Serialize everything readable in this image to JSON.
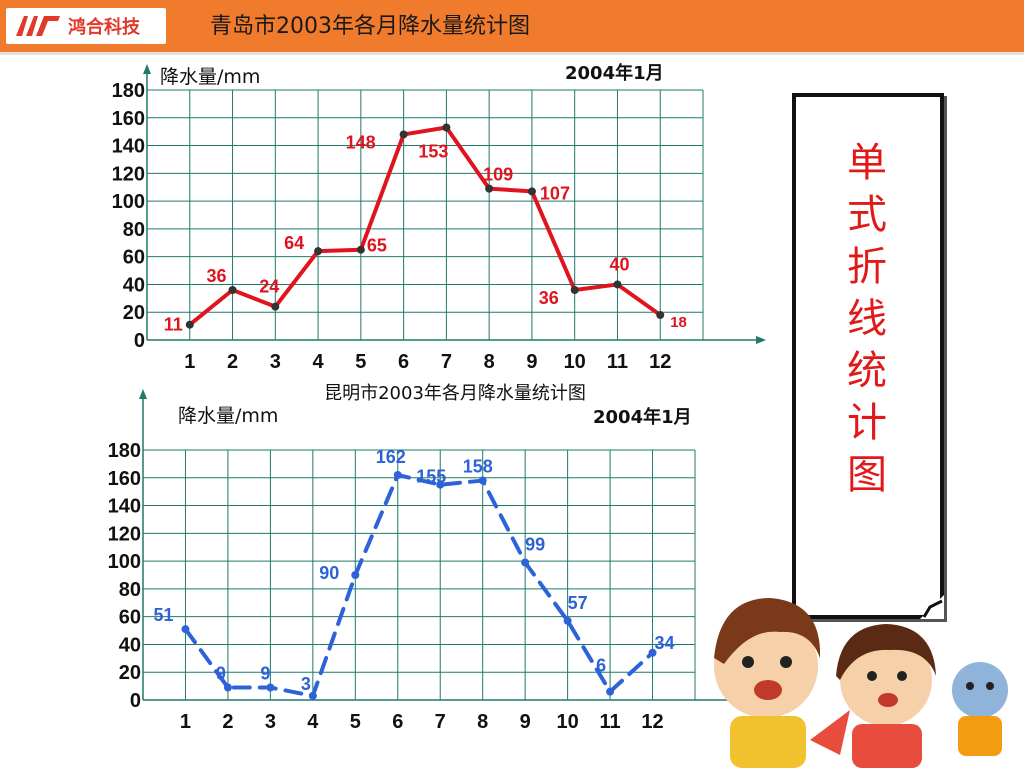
{
  "header": {
    "logo_text": "鸿合科技",
    "title": "青岛市2003年各月降水量统计图"
  },
  "side_panel": {
    "text": "单式折线统计图"
  },
  "chart_data": [
    {
      "type": "line",
      "title": "",
      "ylabel": "降水量/mm",
      "date_note": "2004年1月",
      "categories": [
        "1",
        "2",
        "3",
        "4",
        "5",
        "6",
        "7",
        "8",
        "9",
        "10",
        "11",
        "12"
      ],
      "values": [
        11,
        36,
        24,
        64,
        65,
        148,
        153,
        109,
        107,
        36,
        40,
        18
      ],
      "y_ticks": [
        0,
        20,
        40,
        60,
        80,
        100,
        120,
        140,
        160,
        180
      ],
      "ylim": [
        0,
        180
      ],
      "line_style": "solid",
      "color": "#e0141e",
      "grid": true
    },
    {
      "type": "line",
      "title": "昆明市2003年各月降水量统计图",
      "ylabel": "降水量/mm",
      "date_note": "2004年1月",
      "categories": [
        "1",
        "2",
        "3",
        "4",
        "5",
        "6",
        "7",
        "8",
        "9",
        "10",
        "11",
        "12"
      ],
      "values": [
        51,
        9,
        9,
        3,
        90,
        162,
        155,
        158,
        99,
        57,
        6,
        34
      ],
      "y_ticks": [
        0,
        20,
        40,
        60,
        80,
        100,
        120,
        140,
        160,
        180
      ],
      "ylim": [
        0,
        180
      ],
      "line_style": "dashed",
      "color": "#2e62d8",
      "grid": true
    }
  ]
}
